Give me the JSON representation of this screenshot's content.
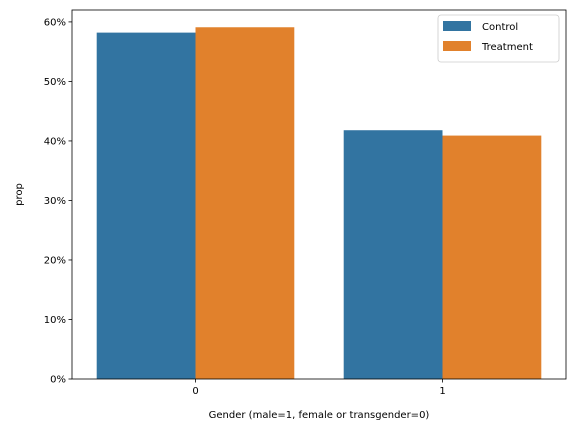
{
  "chart_data": {
    "type": "bar",
    "categories": [
      "0",
      "1"
    ],
    "series": [
      {
        "name": "Control",
        "values": [
          0.582,
          0.418
        ],
        "color": "#3274a1"
      },
      {
        "name": "Treatment",
        "values": [
          0.591,
          0.409
        ],
        "color": "#e1812c"
      }
    ],
    "xlabel": "Gender (male=1, female or transgender=0)",
    "ylabel": "prop",
    "ylim": [
      0,
      0.62
    ],
    "yticks": [
      0,
      0.1,
      0.2,
      0.3,
      0.4,
      0.5,
      0.6
    ],
    "ytick_labels": [
      "0%",
      "10%",
      "20%",
      "30%",
      "40%",
      "50%",
      "60%"
    ],
    "legend_position": "top-right",
    "grid": false
  }
}
